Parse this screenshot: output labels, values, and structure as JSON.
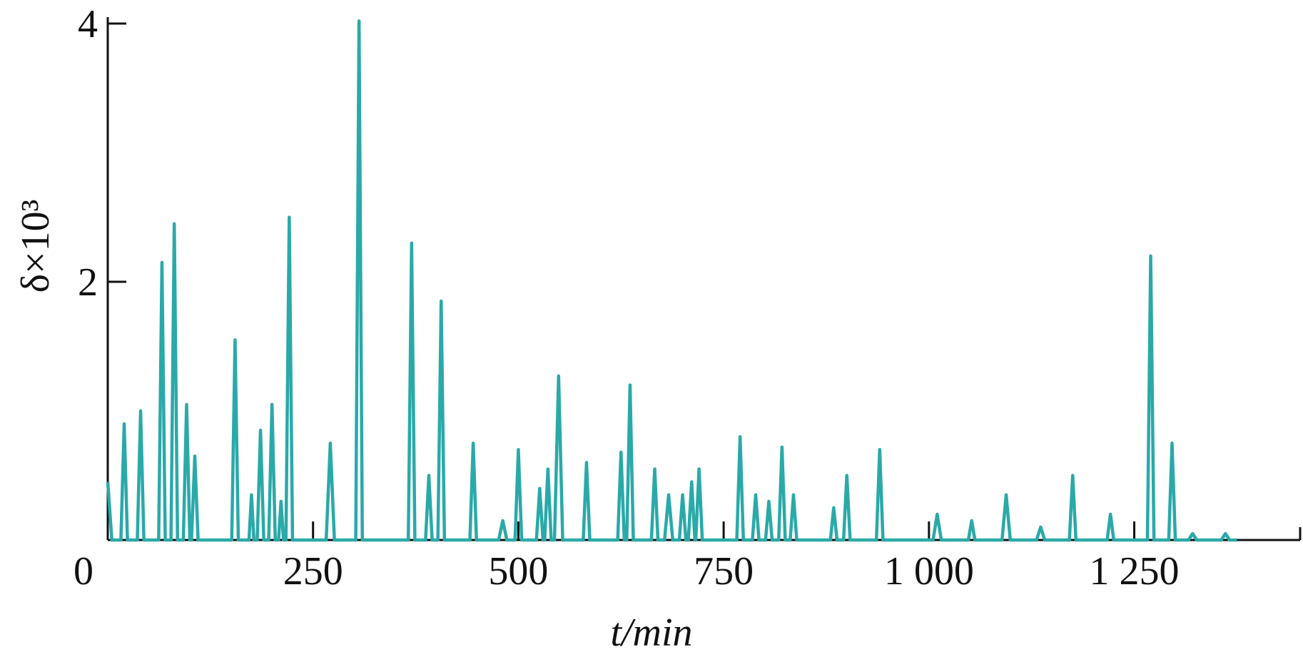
{
  "chart_data": {
    "type": "line",
    "y_label": "δ×10³",
    "x_label": "t/min",
    "xlim": [
      0,
      1452
    ],
    "ylim": [
      0,
      4.05
    ],
    "xticks": [
      0,
      250,
      500,
      750,
      {
        "value": 1000,
        "label": "1 000"
      },
      {
        "value": 1250,
        "label": "1 250"
      }
    ],
    "yticks": [
      2,
      4
    ],
    "x": [
      0,
      5,
      16,
      20,
      24,
      36,
      40,
      44,
      62,
      66,
      70,
      77,
      81,
      85,
      92,
      96,
      100,
      102,
      106,
      110,
      151,
      155,
      159,
      172,
      175,
      178,
      182,
      186,
      190,
      196,
      200,
      204,
      208,
      211,
      214,
      217,
      221,
      225,
      266,
      271,
      276,
      302,
      306,
      310,
      366,
      370,
      374,
      387,
      391,
      395,
      402,
      406,
      410,
      441,
      445,
      449,
      476,
      481,
      486,
      496,
      500,
      504,
      522,
      526,
      530,
      532,
      536,
      540,
      544,
      549,
      554,
      579,
      583,
      587,
      621,
      625,
      629,
      632,
      636,
      640,
      662,
      666,
      670,
      678,
      683,
      688,
      696,
      700,
      704,
      707,
      711,
      715,
      716,
      720,
      724,
      766,
      770,
      774,
      785,
      789,
      793,
      801,
      805,
      809,
      817,
      821,
      825,
      831,
      835,
      839,
      880,
      884,
      888,
      896,
      900,
      904,
      936,
      940,
      944,
      1005,
      1010,
      1015,
      1048,
      1052,
      1056,
      1089,
      1094,
      1099,
      1131,
      1136,
      1141,
      1171,
      1175,
      1179,
      1217,
      1221,
      1225,
      1266,
      1270,
      1274,
      1292,
      1296,
      1300,
      1316,
      1321,
      1326,
      1356,
      1361,
      1366,
      1375
    ],
    "series": [
      {
        "color": "#2aa9a9",
        "values": [
          0.45,
          0,
          0,
          0.9,
          0,
          0,
          1.0,
          0,
          0,
          2.15,
          0,
          0,
          2.45,
          0,
          0,
          1.05,
          0,
          0,
          0.65,
          0,
          0,
          1.55,
          0,
          0,
          0.35,
          0,
          0,
          0.85,
          0,
          0,
          1.05,
          0,
          0,
          0.3,
          0,
          0,
          2.5,
          0,
          0,
          0.75,
          0,
          0,
          4.02,
          0,
          0,
          2.3,
          0,
          0,
          0.5,
          0,
          0,
          1.85,
          0,
          0,
          0.75,
          0,
          0,
          0.15,
          0,
          0,
          0.7,
          0,
          0,
          0.4,
          0,
          0,
          0.55,
          0,
          0,
          1.27,
          0,
          0,
          0.6,
          0,
          0,
          0.68,
          0,
          0,
          1.2,
          0,
          0,
          0.55,
          0,
          0,
          0.35,
          0,
          0,
          0.35,
          0,
          0,
          0.45,
          0,
          0,
          0.55,
          0,
          0,
          0.8,
          0,
          0,
          0.35,
          0,
          0,
          0.3,
          0,
          0,
          0.72,
          0,
          0,
          0.35,
          0,
          0,
          0.25,
          0,
          0,
          0.5,
          0,
          0,
          0.7,
          0,
          0,
          0.2,
          0,
          0,
          0.15,
          0,
          0,
          0.35,
          0,
          0,
          0.1,
          0,
          0,
          0.5,
          0,
          0,
          0.2,
          0,
          0,
          2.2,
          0,
          0,
          0.75,
          0,
          0,
          0.05,
          0,
          0,
          0.05,
          0,
          0
        ]
      }
    ]
  }
}
